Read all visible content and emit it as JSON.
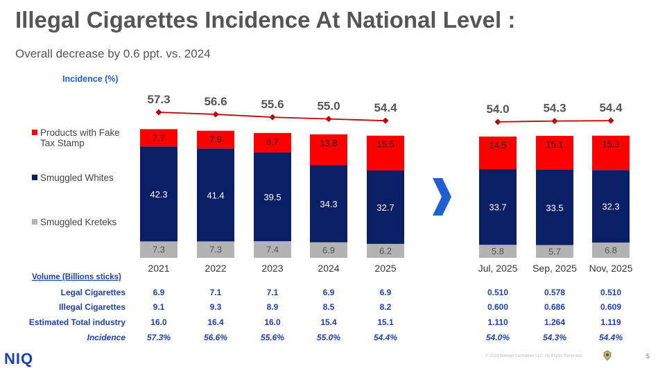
{
  "title": "Illegal Cigarettes Incidence At National Level :",
  "subtitle": "Overall decrease by 0.6 ppt. vs. 2024",
  "incidence_label": "Incidence (%)",
  "colors": {
    "fake": "#ff0000",
    "whites": "#0b1f66",
    "kreteks": "#b3b3b3",
    "line": "#c00000",
    "accent": "#1f5fd1",
    "label": "#1f3fae"
  },
  "arrow_icon": "chevron-right-icon",
  "chart_data": {
    "type": "bar",
    "stacked": true,
    "categories": [
      "2021",
      "2022",
      "2023",
      "2024",
      "2025",
      "Jul, 2025",
      "Sep, 2025",
      "Nov, 2025"
    ],
    "series": [
      {
        "name": "Smuggled Kreteks",
        "values": [
          7.3,
          7.3,
          7.4,
          6.9,
          6.2,
          5.8,
          5.7,
          6.8
        ]
      },
      {
        "name": "Smuggled Whites",
        "values": [
          42.3,
          41.4,
          39.5,
          34.3,
          32.7,
          33.7,
          33.5,
          32.3
        ]
      },
      {
        "name": "Products with Fake Tax Stamp",
        "values": [
          7.7,
          7.9,
          8.7,
          13.8,
          15.5,
          14.5,
          15.1,
          15.3
        ]
      }
    ],
    "line": {
      "values": [
        57.3,
        56.6,
        55.6,
        55.0,
        54.4,
        54.0,
        54.3,
        54.4
      ]
    },
    "legend": [
      "Products with Fake Tax Stamp",
      "Smuggled Whites",
      "Smuggled Kreteks"
    ],
    "legend_placement": "left",
    "grid": false
  },
  "table": {
    "header": "Volume (Billions sticks)",
    "rows": [
      {
        "label": "Legal Cigarettes",
        "values": [
          "6.9",
          "7.1",
          "7.1",
          "6.9",
          "6.9",
          "0.510",
          "0.578",
          "0.510"
        ],
        "italic": false
      },
      {
        "label": "Illegal Cigarettes",
        "values": [
          "9.1",
          "9.3",
          "8.9",
          "8.5",
          "8.2",
          "0.600",
          "0.686",
          "0.609"
        ],
        "italic": false
      },
      {
        "label": "Estimated Total industry",
        "values": [
          "16.0",
          "16.4",
          "16.0",
          "15.4",
          "15.1",
          "1.110",
          "1.264",
          "1.119"
        ],
        "italic": false
      },
      {
        "label": "Incidence",
        "values": [
          "57.3%",
          "56.6%",
          "55.6%",
          "55.0%",
          "54.4%",
          "54.0%",
          "54.3%",
          "54.4%"
        ],
        "italic": true
      }
    ]
  },
  "footer": {
    "logo": "NIQ",
    "copyright": "© 2023 Nielsen Consumer LLC. All Rights Reserved.",
    "page": "5"
  }
}
